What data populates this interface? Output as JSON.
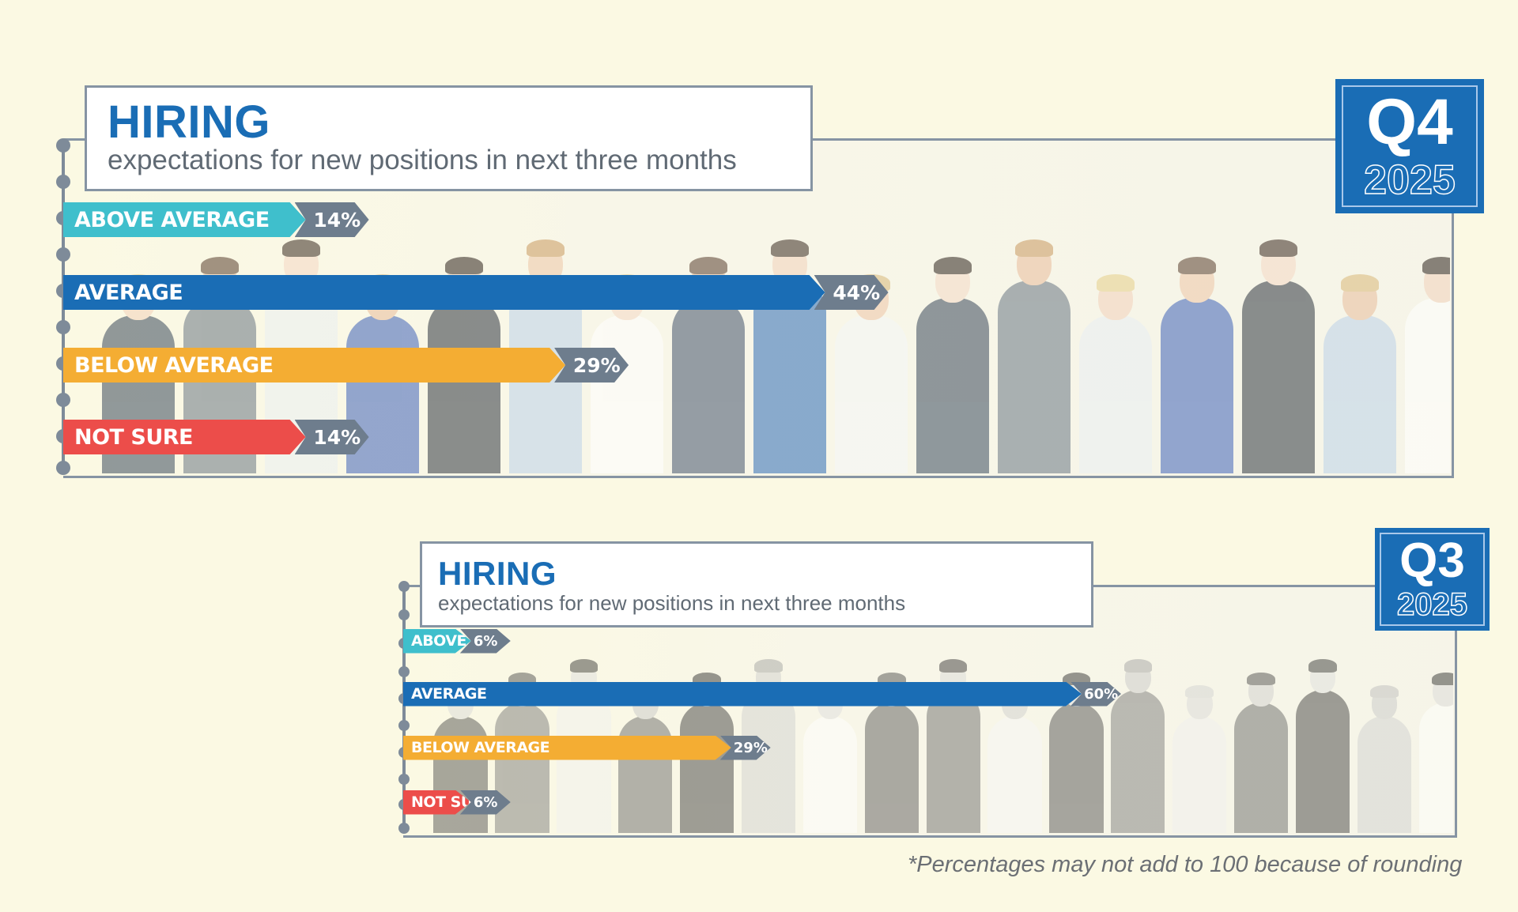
{
  "colors": {
    "background": "#fbf9e3",
    "accent_blue": "#1a6db5",
    "above_average": "#3fbfcc",
    "average": "#1a6db5",
    "below_average": "#f4ad33",
    "not_sure": "#ec4d4a",
    "tag_gray": "#6e7d8d",
    "frame_gray": "#8694a3"
  },
  "footnote": "*Percentages may not add to 100 because of rounding",
  "chart_data": [
    {
      "type": "bar",
      "orientation": "horizontal",
      "title": "HIRING",
      "subtitle": "expectations for new positions in next three months",
      "badge": {
        "quarter": "Q4",
        "year": "2025"
      },
      "categories": [
        "ABOVE AVERAGE",
        "AVERAGE",
        "BELOW AVERAGE",
        "NOT SURE"
      ],
      "values": [
        14,
        44,
        29,
        14
      ],
      "value_labels": [
        "14%",
        "44%",
        "29%",
        "14%"
      ],
      "unit": "%"
    },
    {
      "type": "bar",
      "orientation": "horizontal",
      "title": "HIRING",
      "subtitle": "expectations for new positions in next three months",
      "badge": {
        "quarter": "Q3",
        "year": "2025"
      },
      "categories": [
        "ABOVE AVERAGE",
        "AVERAGE",
        "BELOW AVERAGE",
        "NOT SURE"
      ],
      "values": [
        6,
        60,
        29,
        6
      ],
      "value_labels": [
        "6%",
        "60%",
        "29%",
        "6%"
      ],
      "unit": "%"
    }
  ]
}
